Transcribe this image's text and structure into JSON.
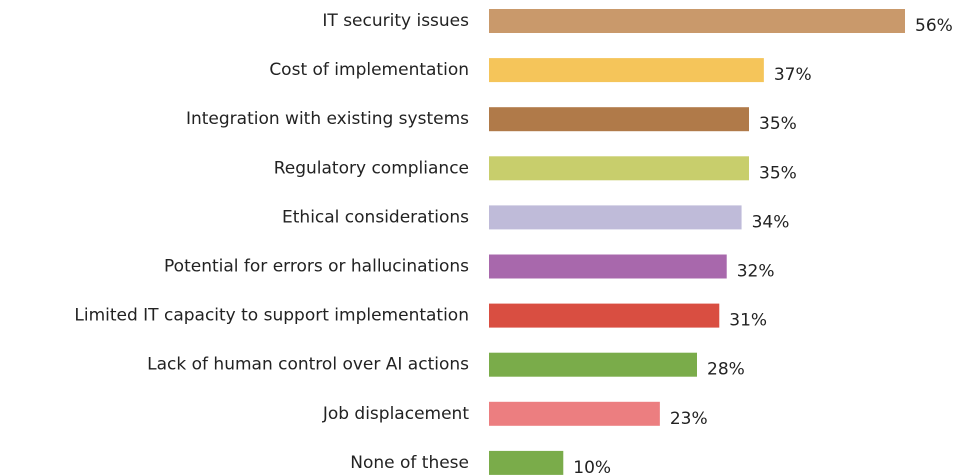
{
  "chart_data": {
    "type": "bar",
    "orientation": "horizontal",
    "categories": [
      "IT security issues",
      "Cost of implementation",
      "Integration with existing systems",
      "Regulatory compliance",
      "Ethical considerations",
      "Potential for errors or hallucinations",
      "Limited IT capacity to support implementation",
      "Lack of human control over AI actions",
      "Job displacement",
      "None of these"
    ],
    "values": [
      56,
      37,
      35,
      35,
      34,
      32,
      31,
      28,
      23,
      10
    ],
    "value_labels": [
      "56%",
      "37%",
      "35%",
      "35%",
      "34%",
      "32%",
      "31%",
      "28%",
      "23%",
      "10%"
    ],
    "colors": [
      "#c9996b",
      "#f5c55a",
      "#b07a49",
      "#c8ce6c",
      "#bfbbd9",
      "#a868ac",
      "#d94e41",
      "#7aac4a",
      "#ec7e80",
      "#7aac4a"
    ]
  }
}
